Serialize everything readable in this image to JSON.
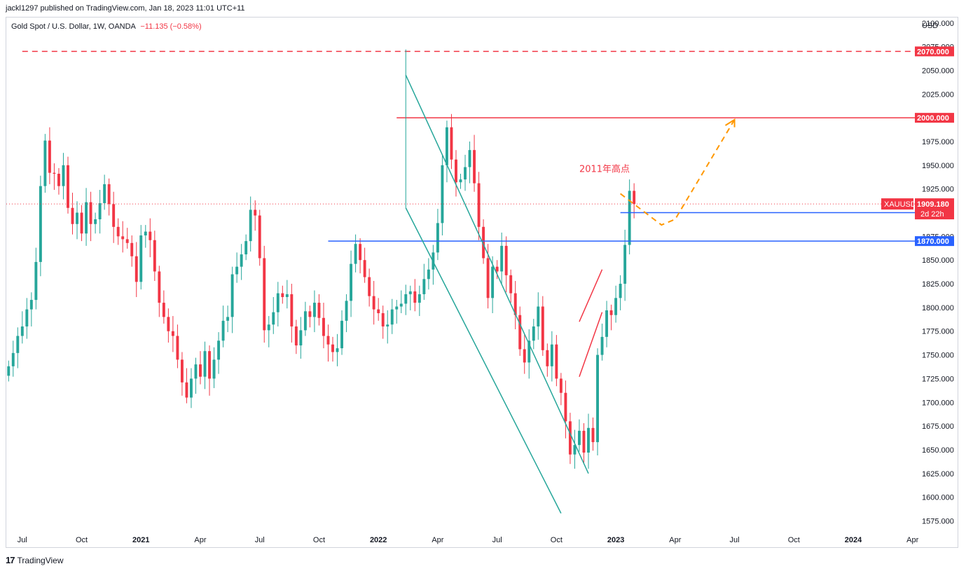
{
  "header": {
    "publisher": "jackl1297 published on TradingView.com, Jan 18, 2023 11:01 UTC+11",
    "symbol_line": "Gold Spot / U.S. Dollar, 1W, OANDA",
    "change": "−11.135 (−0.58%)"
  },
  "footer": {
    "brand": "TradingView",
    "logo": "17"
  },
  "colors": {
    "up": "#26a69a",
    "down": "#f23645",
    "channel": "#26a69a",
    "support": "#2962ff",
    "resistance": "#f23645",
    "forecast": "#ff9800",
    "text": "#131722"
  },
  "chart_data": {
    "type": "candlestick",
    "title": "Gold Spot / U.S. Dollar, 1W, OANDA",
    "y_unit": "USD",
    "ylim": [
      1565,
      2105
    ],
    "y_ticks": [
      "2100.000",
      "2075.000",
      "2050.000",
      "2025.000",
      "2000.000",
      "1975.000",
      "1950.000",
      "1925.000",
      "1900.000",
      "1875.000",
      "1850.000",
      "1825.000",
      "1800.000",
      "1775.000",
      "1750.000",
      "1725.000",
      "1700.000",
      "1675.000",
      "1650.000",
      "1625.000",
      "1600.000",
      "1575.000"
    ],
    "x_labels": [
      {
        "label": "Jul",
        "week": 3
      },
      {
        "label": "Oct",
        "week": 16
      },
      {
        "label": "2021",
        "week": 29
      },
      {
        "label": "Apr",
        "week": 42
      },
      {
        "label": "Jul",
        "week": 55
      },
      {
        "label": "Oct",
        "week": 68
      },
      {
        "label": "2022",
        "week": 81
      },
      {
        "label": "Apr",
        "week": 94
      },
      {
        "label": "Jul",
        "week": 107
      },
      {
        "label": "Oct",
        "week": 120
      },
      {
        "label": "2023",
        "week": 133
      },
      {
        "label": "Apr",
        "week": 146
      },
      {
        "label": "Jul",
        "week": 159
      },
      {
        "label": "Oct",
        "week": 172
      },
      {
        "label": "2024",
        "week": 185
      },
      {
        "label": "Apr",
        "week": 198
      }
    ],
    "x_range": [
      -0.5,
      198.5
    ],
    "closes": [
      1738,
      1752,
      1770,
      1780,
      1798,
      1808,
      1848,
      1928,
      1976,
      1942,
      1941,
      1928,
      1950,
      1905,
      1888,
      1900,
      1878,
      1911,
      1888,
      1893,
      1910,
      1930,
      1909,
      1885,
      1875,
      1872,
      1868,
      1854,
      1827,
      1876,
      1880,
      1871,
      1838,
      1805,
      1790,
      1775,
      1770,
      1745,
      1721,
      1705,
      1725,
      1740,
      1727,
      1754,
      1725,
      1745,
      1765,
      1786,
      1790,
      1835,
      1843,
      1856,
      1870,
      1903,
      1897,
      1852,
      1776,
      1782,
      1795,
      1815,
      1811,
      1814,
      1780,
      1760,
      1776,
      1796,
      1790,
      1805,
      1789,
      1770,
      1761,
      1753,
      1757,
      1786,
      1807,
      1846,
      1867,
      1850,
      1832,
      1812,
      1798,
      1794,
      1780,
      1782,
      1798,
      1801,
      1804,
      1814,
      1817,
      1805,
      1814,
      1830,
      1840,
      1858,
      1889,
      1950,
      1990,
      1956,
      1932,
      1935,
      1948,
      1966,
      1931,
      1885,
      1852,
      1810,
      1843,
      1838,
      1865,
      1834,
      1815,
      1792,
      1756,
      1742,
      1765,
      1780,
      1801,
      1755,
      1738,
      1761,
      1725,
      1710,
      1680,
      1645,
      1655,
      1670,
      1647,
      1673,
      1658,
      1750,
      1769,
      1797,
      1792,
      1810,
      1825,
      1866,
      1923,
      1909
    ],
    "series_highlights": {
      "last_close": "1909.180",
      "countdown": "2d 22h"
    },
    "annotations": {
      "levels": [
        {
          "value": "2070.000",
          "style": "dashed",
          "color": "resistance"
        },
        {
          "value": "2000.000",
          "style": "solid",
          "color": "resistance"
        },
        {
          "value": "1900.000",
          "style": "solid",
          "color": "support"
        },
        {
          "value": "1870.000",
          "style": "solid",
          "color": "support"
        }
      ],
      "label_text": "2011年高点",
      "symbol_tag": "XAUUSD"
    }
  }
}
